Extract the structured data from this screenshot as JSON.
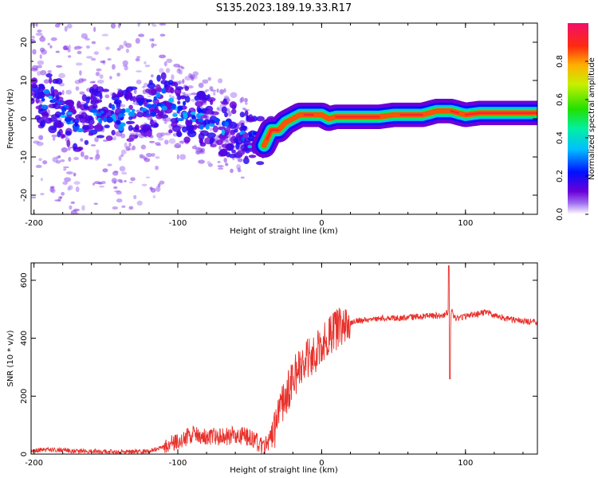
{
  "title": "S135.2023.189.19.33.R17",
  "chart_data": [
    {
      "type": "heatmap",
      "name": "spectrogram",
      "xlabel": "Height of straight line (km)",
      "ylabel": "Frequency (Hz)",
      "xlim": [
        -202,
        150
      ],
      "ylim": [
        -25,
        25
      ],
      "xticks": [
        -200,
        -100,
        0,
        100
      ],
      "yticks": [
        -20,
        -10,
        0,
        10,
        20
      ],
      "colorbar": {
        "label": "Normalized spectral amplitude",
        "range": [
          0,
          1
        ],
        "ticks": [
          "0.0",
          "0.2",
          "0.4",
          "0.6",
          "0.8"
        ],
        "tick_values": [
          0,
          0.2,
          0.4,
          0.6,
          0.8
        ]
      },
      "ridge": {
        "description": "dominant frequency track",
        "x": [
          -200,
          -190,
          -180,
          -170,
          -160,
          -150,
          -140,
          -130,
          -120,
          -110,
          -100,
          -90,
          -80,
          -70,
          -60,
          -50,
          -45,
          -40,
          -35,
          -30,
          -25,
          -20,
          -15,
          -10,
          -5,
          0,
          5,
          10,
          20,
          30,
          40,
          50,
          60,
          70,
          80,
          90,
          100,
          110,
          120,
          130,
          140,
          150
        ],
        "y": [
          3,
          5,
          2,
          -2,
          1,
          2,
          0,
          2,
          3,
          5,
          2,
          1,
          -1,
          -2,
          -3,
          -5,
          -6,
          -7,
          -3,
          -3,
          -1,
          0,
          1,
          1,
          1,
          1,
          0,
          0.5,
          0.5,
          0.5,
          0.5,
          1,
          1,
          1,
          2,
          2,
          1,
          1.5,
          1.5,
          1.5,
          1.5,
          1.5
        ]
      }
    },
    {
      "type": "line",
      "name": "snr",
      "xlabel": "Height of straight line (km)",
      "ylabel": "SNR (10 * v/v)",
      "xlim": [
        -202,
        150
      ],
      "ylim": [
        0,
        660
      ],
      "xticks": [
        -200,
        -100,
        0,
        100
      ],
      "yticks": [
        0,
        200,
        400,
        600
      ],
      "color": "#e8302a",
      "series": [
        {
          "name": "SNR",
          "x": [
            -202,
            -190,
            -180,
            -170,
            -160,
            -150,
            -140,
            -130,
            -120,
            -110,
            -100,
            -90,
            -80,
            -70,
            -60,
            -50,
            -40,
            -35,
            -30,
            -25,
            -20,
            -15,
            -10,
            -5,
            0,
            5,
            10,
            15,
            20,
            25,
            30,
            40,
            50,
            60,
            70,
            80,
            85,
            88,
            89,
            90,
            92,
            95,
            100,
            110,
            115,
            120,
            130,
            140,
            150
          ],
          "y": [
            12,
            15,
            14,
            10,
            10,
            8,
            8,
            8,
            10,
            25,
            45,
            70,
            65,
            60,
            65,
            60,
            25,
            55,
            120,
            200,
            260,
            300,
            330,
            350,
            370,
            400,
            430,
            445,
            455,
            460,
            462,
            468,
            470,
            472,
            475,
            478,
            480,
            490,
            270,
            500,
            470,
            470,
            475,
            485,
            490,
            480,
            465,
            460,
            455
          ]
        }
      ]
    }
  ]
}
